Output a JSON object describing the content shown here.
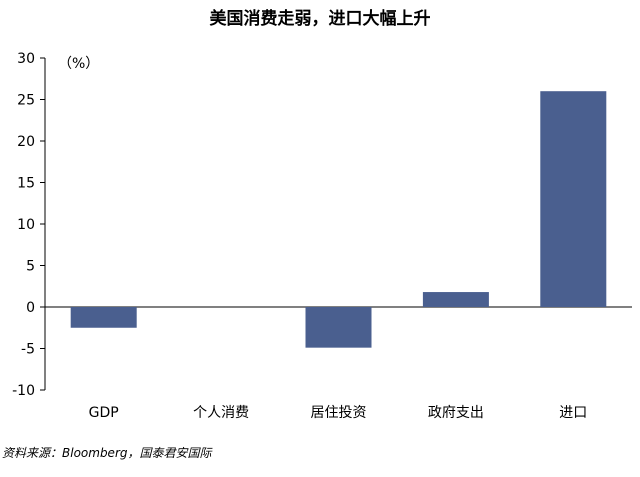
{
  "chart_data": {
    "type": "bar",
    "title": "美国消费走弱，进口大幅上升",
    "unit_label": "（%）",
    "categories": [
      "GDP",
      "个人消费",
      "居住投资",
      "政府支出",
      "进口"
    ],
    "values": [
      -2.5,
      0,
      -4.9,
      1.8,
      26.0
    ],
    "yticks": [
      30,
      25,
      20,
      15,
      10,
      5,
      0,
      -5,
      -10
    ],
    "ylim": [
      -10,
      30
    ],
    "grid": false,
    "legend": "none",
    "bar_color": "#4a5f8f"
  },
  "source": "资料来源：Bloomberg，国泰君安国际"
}
